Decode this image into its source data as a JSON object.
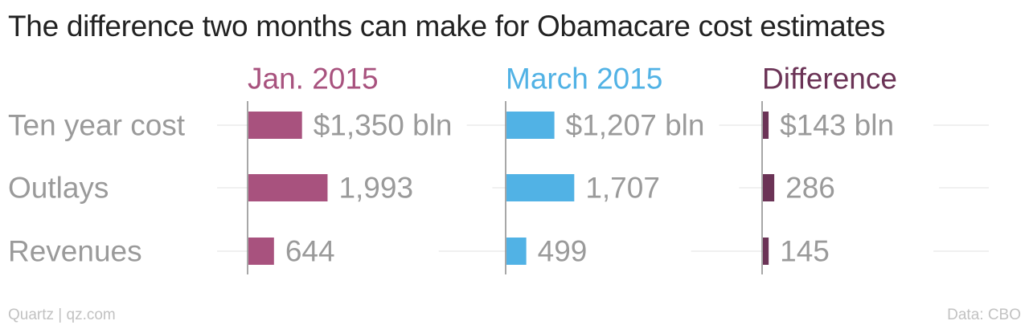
{
  "title": "The difference two months can make for Obamacare cost estimates",
  "footer": {
    "source_credit": "Quartz | qz.com",
    "data_credit": "Data: CBO"
  },
  "chart_data": {
    "type": "bar",
    "orientation": "horizontal",
    "categories": [
      "Ten year cost",
      "Outlays",
      "Revenues"
    ],
    "series": [
      {
        "name": "Jan. 2015",
        "values": [
          1350,
          1993,
          644
        ],
        "labels": [
          "$1,350 bln",
          "1,993",
          "644"
        ],
        "color": "#a8527e"
      },
      {
        "name": "March 2015",
        "values": [
          1207,
          1707,
          499
        ],
        "labels": [
          "$1,207 bln",
          "1,707",
          "499"
        ],
        "color": "#51b2e5"
      },
      {
        "name": "Difference",
        "values": [
          143,
          286,
          145
        ],
        "labels": [
          "$143 bln",
          "286",
          "145"
        ],
        "color": "#6b3356"
      }
    ],
    "grid": false,
    "legend": "column headers"
  }
}
